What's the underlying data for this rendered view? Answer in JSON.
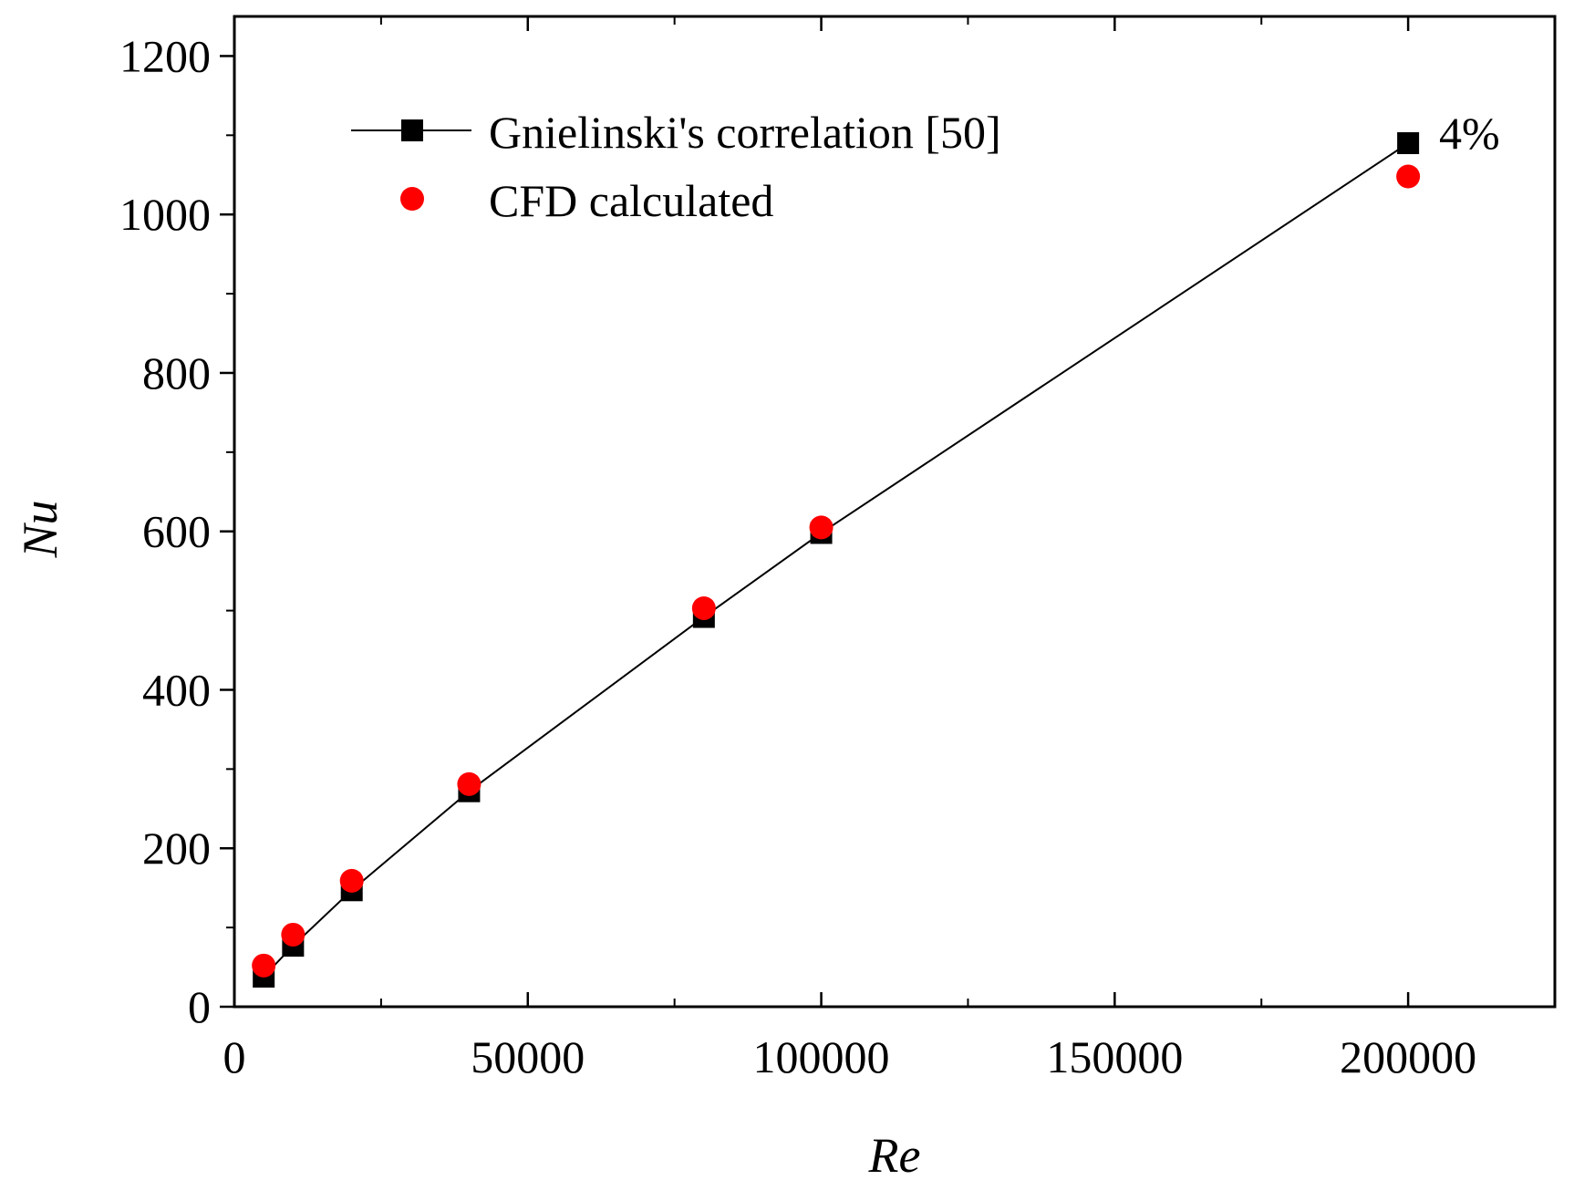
{
  "chart_data": {
    "type": "line",
    "title": "",
    "xlabel": "Re",
    "ylabel": "Nu",
    "xlim": [
      0,
      225000
    ],
    "ylim": [
      0,
      1250
    ],
    "x_ticks": [
      0,
      50000,
      100000,
      150000,
      200000
    ],
    "y_ticks": [
      0,
      200,
      400,
      600,
      800,
      1000,
      1200
    ],
    "x_minor_step": 25000,
    "y_minor_step": 100,
    "legend_position": "top-left",
    "series": [
      {
        "name": "Gnielinski's correlation [50]",
        "style": "line-square",
        "color": "#000000",
        "x": [
          5000,
          10000,
          20000,
          40000,
          80000,
          100000,
          200000
        ],
        "y": [
          38,
          77,
          147,
          272,
          492,
          598,
          1090
        ]
      },
      {
        "name": "CFD calculated",
        "style": "circle",
        "color": "#ff0000",
        "x": [
          5000,
          10000,
          20000,
          40000,
          80000,
          100000,
          200000
        ],
        "y": [
          52,
          91,
          159,
          281,
          503,
          605,
          1048
        ]
      }
    ],
    "annotations": [
      {
        "text": "4%",
        "x": 200000,
        "y": 1090
      }
    ]
  }
}
